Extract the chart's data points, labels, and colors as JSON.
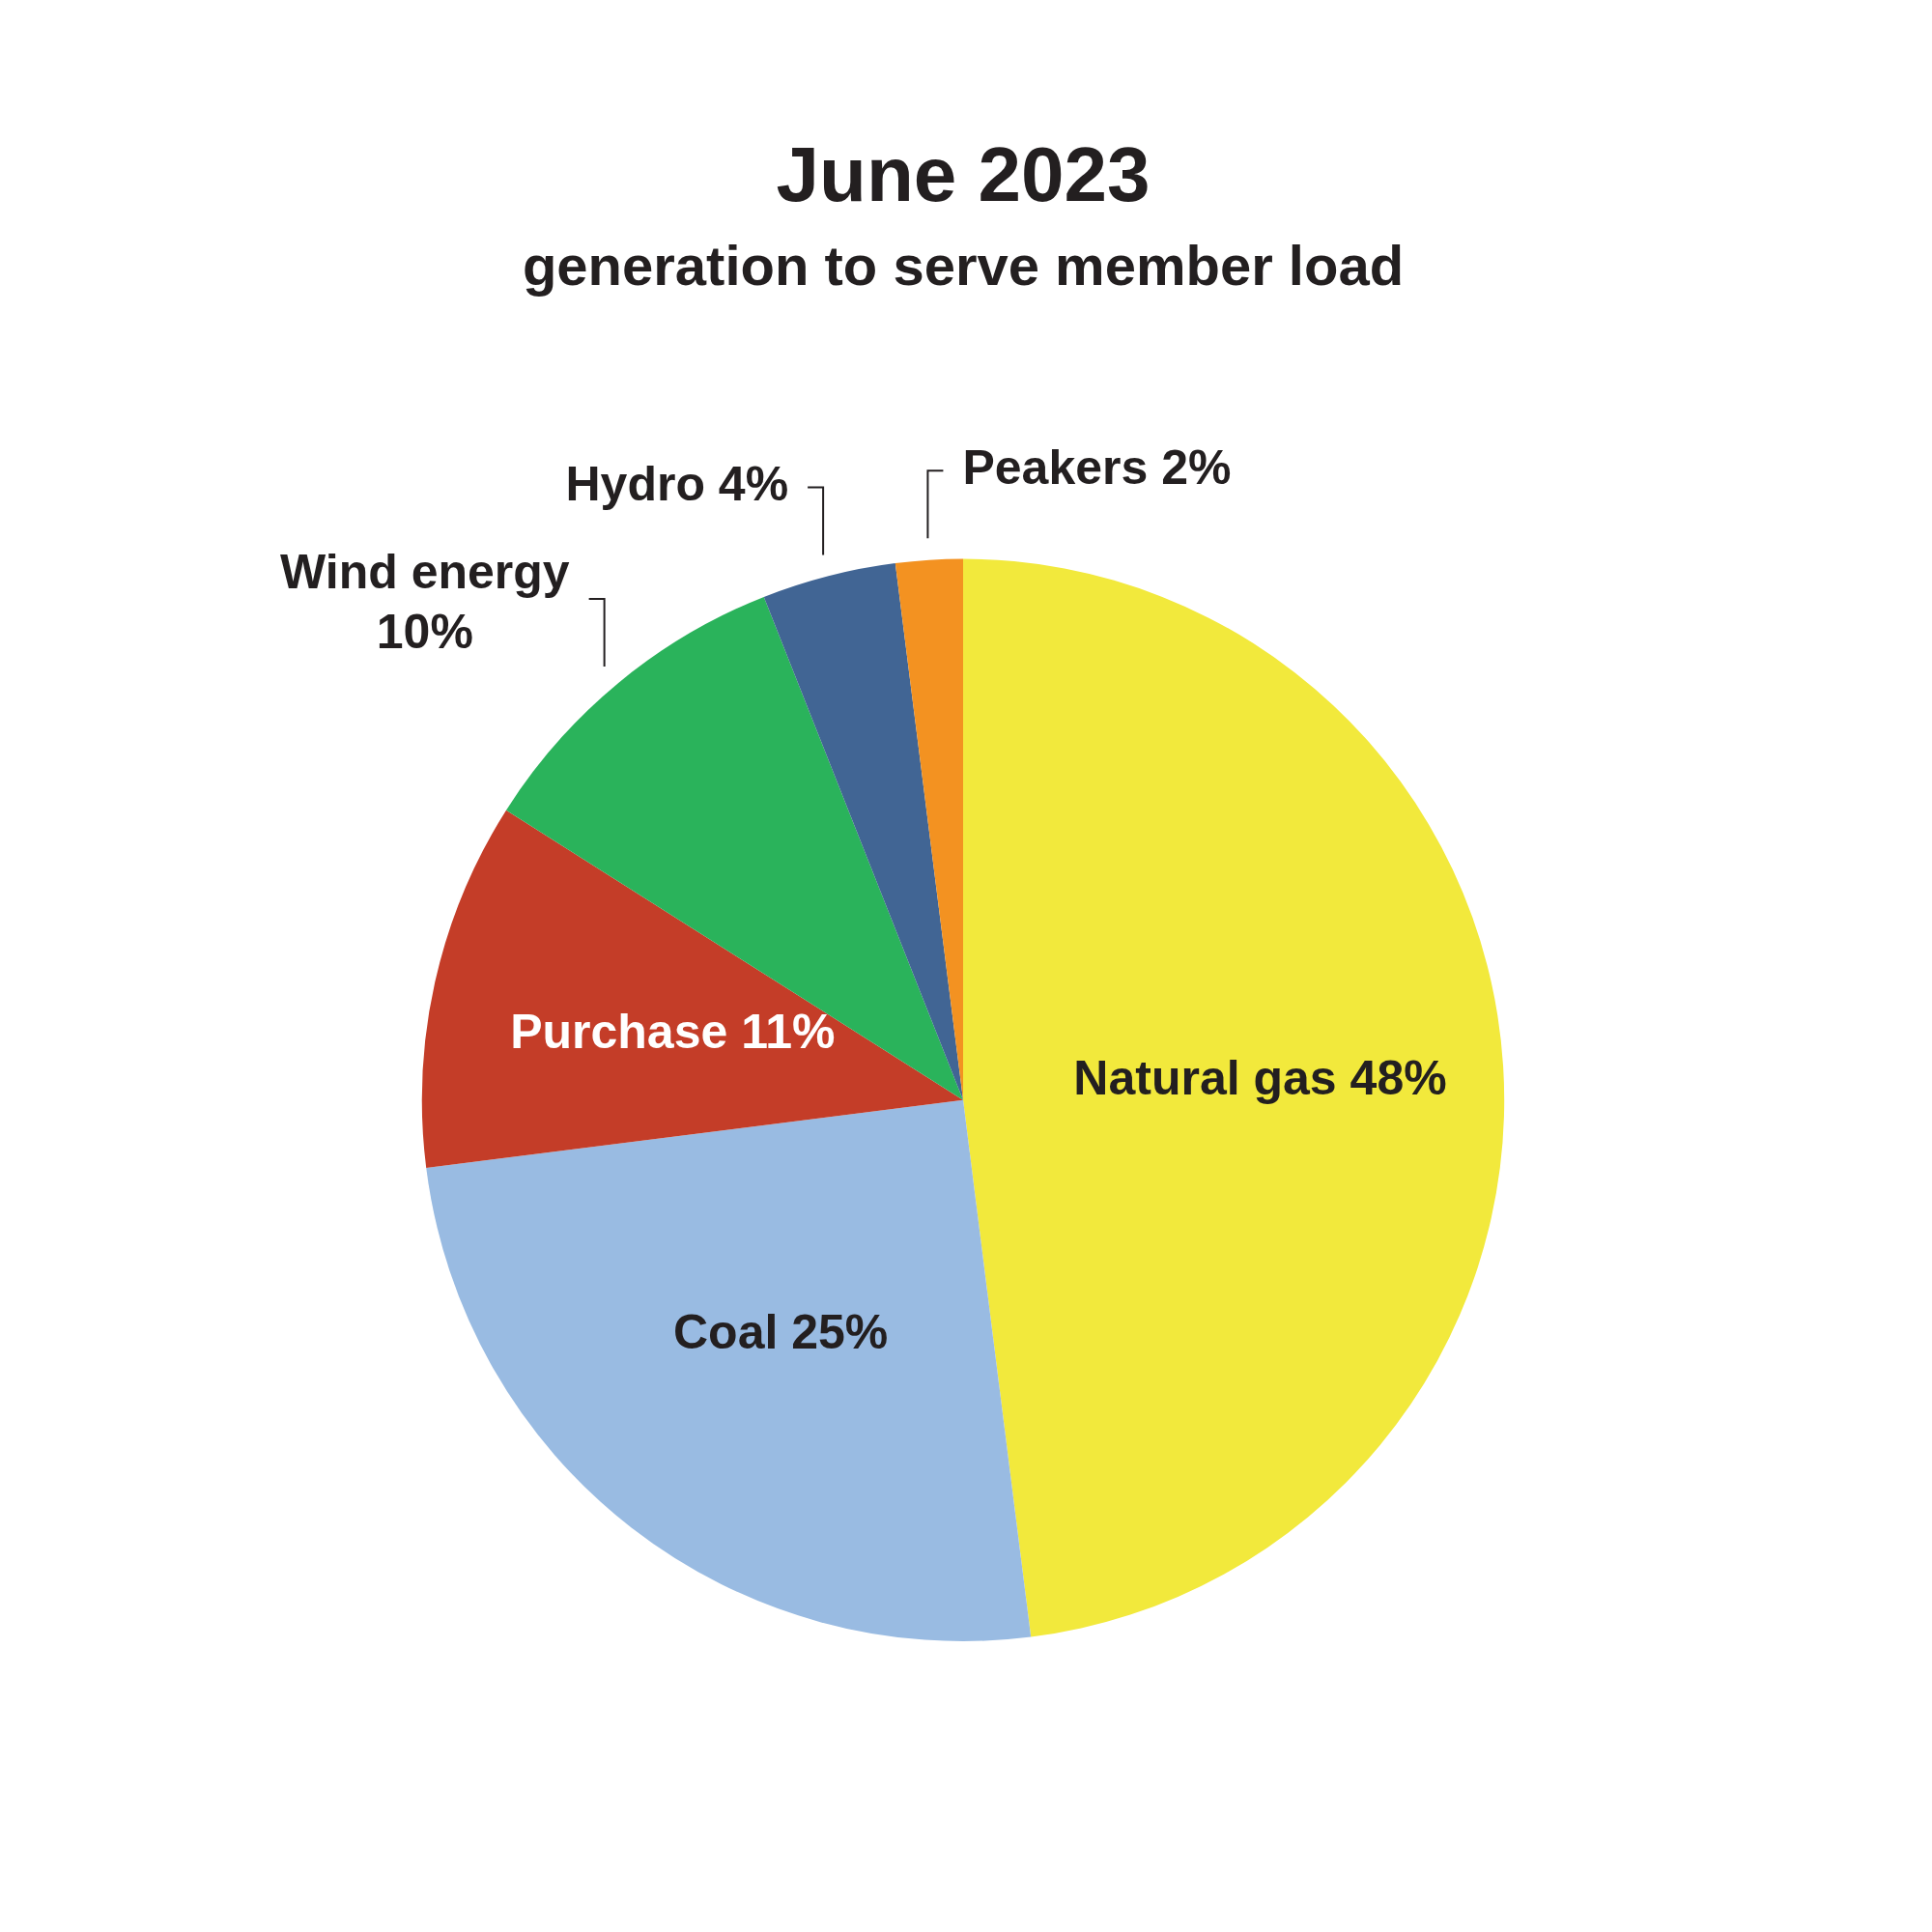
{
  "chart_data": {
    "type": "pie",
    "title": "June 2023",
    "subtitle": "generation to serve member load",
    "categories": [
      "Natural gas",
      "Coal",
      "Purchase",
      "Wind energy",
      "Hydro",
      "Peakers"
    ],
    "values": [
      48,
      25,
      11,
      10,
      4,
      2
    ],
    "value_labels": [
      "48%",
      "25%",
      "11%",
      "10%",
      "4%",
      "2%"
    ],
    "colors": [
      "#f2e93c",
      "#99bbe2",
      "#c43d28",
      "#2ab35b",
      "#416594",
      "#f39221"
    ],
    "legend": false
  }
}
